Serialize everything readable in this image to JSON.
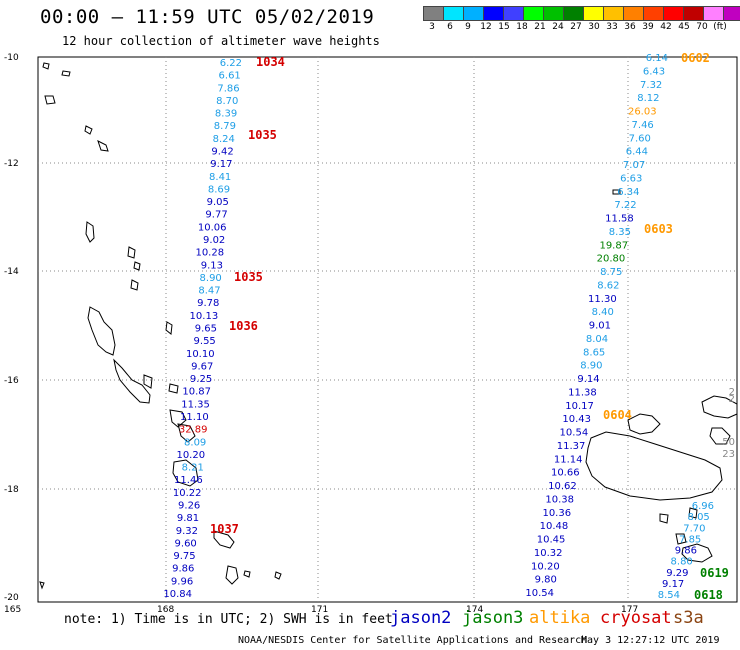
{
  "header": {
    "title": "00:00 – 11:59 UTC 05/02/2019",
    "subtitle": "12 hour collection of altimeter wave heights"
  },
  "colorbar": {
    "colors": [
      "#808080",
      "#00e5ff",
      "#00b0ff",
      "#0000ff",
      "#4040ff",
      "#00ff00",
      "#00c000",
      "#008000",
      "#ffff00",
      "#ffc000",
      "#ff8000",
      "#ff4000",
      "#ff0000",
      "#c00000",
      "#ff80ff",
      "#c000c0",
      "#000000"
    ],
    "labels": [
      "3",
      "6",
      "9",
      "12",
      "15",
      "18",
      "21",
      "24",
      "27",
      "30",
      "33",
      "36",
      "39",
      "42",
      "45",
      "70",
      "(ft)"
    ]
  },
  "map": {
    "x_ticks": [
      "165",
      "168",
      "171",
      "174",
      "177"
    ],
    "y_ticks": [
      "-10",
      "-12",
      "-14",
      "-16",
      "-18",
      "-20"
    ]
  },
  "tracks": {
    "colors": {
      "jason2": "#0000c0",
      "cyan": "#1e9ee6",
      "jason3": "#008000",
      "altika": "#ff9900",
      "cryosat": "#d40000"
    },
    "left": [
      {
        "v": "6.22",
        "c": "cyan"
      },
      {
        "v": "6.61",
        "c": "cyan"
      },
      {
        "v": "7.86",
        "c": "cyan"
      },
      {
        "v": "8.70",
        "c": "cyan"
      },
      {
        "v": "8.39",
        "c": "cyan"
      },
      {
        "v": "8.79",
        "c": "cyan"
      },
      {
        "v": "8.24",
        "c": "cyan"
      },
      {
        "v": "9.42",
        "c": "jason2"
      },
      {
        "v": "9.17",
        "c": "jason2"
      },
      {
        "v": "8.41",
        "c": "cyan"
      },
      {
        "v": "8.69",
        "c": "cyan"
      },
      {
        "v": "9.05",
        "c": "jason2"
      },
      {
        "v": "9.77",
        "c": "jason2"
      },
      {
        "v": "10.06",
        "c": "jason2"
      },
      {
        "v": "9.02",
        "c": "jason2"
      },
      {
        "v": "10.28",
        "c": "jason2"
      },
      {
        "v": "9.13",
        "c": "jason2"
      },
      {
        "v": "8.90",
        "c": "cyan"
      },
      {
        "v": "8.47",
        "c": "cyan"
      },
      {
        "v": "9.78",
        "c": "jason2"
      },
      {
        "v": "10.13",
        "c": "jason2"
      },
      {
        "v": "9.65",
        "c": "jason2"
      },
      {
        "v": "9.55",
        "c": "jason2"
      },
      {
        "v": "10.10",
        "c": "jason2"
      },
      {
        "v": "9.67",
        "c": "jason2"
      },
      {
        "v": "9.25",
        "c": "jason2"
      },
      {
        "v": "10.87",
        "c": "jason2"
      },
      {
        "v": "11.35",
        "c": "jason2"
      },
      {
        "v": "11.10",
        "c": "jason2"
      },
      {
        "v": "32.89",
        "c": "cryosat"
      },
      {
        "v": "8.09",
        "c": "cyan"
      },
      {
        "v": "10.20",
        "c": "jason2"
      },
      {
        "v": "8.21",
        "c": "cyan"
      },
      {
        "v": "11.46",
        "c": "jason2"
      },
      {
        "v": "10.22",
        "c": "jason2"
      },
      {
        "v": "9.26",
        "c": "jason2"
      },
      {
        "v": "9.81",
        "c": "jason2"
      },
      {
        "v": "9.32",
        "c": "jason2"
      },
      {
        "v": "9.60",
        "c": "jason2"
      },
      {
        "v": "9.75",
        "c": "jason2"
      },
      {
        "v": "9.86",
        "c": "jason2"
      },
      {
        "v": "9.96",
        "c": "jason2"
      },
      {
        "v": "10.84",
        "c": "jason2"
      }
    ],
    "right": [
      {
        "v": "6.14",
        "c": "cyan"
      },
      {
        "v": "6.43",
        "c": "cyan"
      },
      {
        "v": "7.32",
        "c": "cyan"
      },
      {
        "v": "8.12",
        "c": "cyan"
      },
      {
        "v": "26.03",
        "c": "altika"
      },
      {
        "v": "7.46",
        "c": "cyan"
      },
      {
        "v": "7.60",
        "c": "cyan"
      },
      {
        "v": "6.44",
        "c": "cyan"
      },
      {
        "v": "7.07",
        "c": "cyan"
      },
      {
        "v": "6.63",
        "c": "cyan"
      },
      {
        "v": "6.34",
        "c": "cyan"
      },
      {
        "v": "7.22",
        "c": "cyan"
      },
      {
        "v": "11.58",
        "c": "jason2"
      },
      {
        "v": "8.35",
        "c": "cyan"
      },
      {
        "v": "19.87",
        "c": "jason3"
      },
      {
        "v": "20.80",
        "c": "jason3"
      },
      {
        "v": "8.75",
        "c": "cyan"
      },
      {
        "v": "8.62",
        "c": "cyan"
      },
      {
        "v": "11.30",
        "c": "jason2"
      },
      {
        "v": "8.40",
        "c": "cyan"
      },
      {
        "v": "9.01",
        "c": "jason2"
      },
      {
        "v": "8.04",
        "c": "cyan"
      },
      {
        "v": "8.65",
        "c": "cyan"
      },
      {
        "v": "8.90",
        "c": "cyan"
      },
      {
        "v": "9.14",
        "c": "jason2"
      },
      {
        "v": "11.38",
        "c": "jason2"
      },
      {
        "v": "10.17",
        "c": "jason2"
      },
      {
        "v": "10.43",
        "c": "jason2"
      },
      {
        "v": "10.54",
        "c": "jason2"
      },
      {
        "v": "11.37",
        "c": "jason2"
      },
      {
        "v": "11.14",
        "c": "jason2"
      },
      {
        "v": "10.66",
        "c": "jason2"
      },
      {
        "v": "10.62",
        "c": "jason2"
      },
      {
        "v": "10.38",
        "c": "jason2"
      },
      {
        "v": "10.36",
        "c": "jason2"
      },
      {
        "v": "10.48",
        "c": "jason2"
      },
      {
        "v": "10.45",
        "c": "jason2"
      },
      {
        "v": "10.32",
        "c": "jason2"
      },
      {
        "v": "10.20",
        "c": "jason2"
      },
      {
        "v": "9.80",
        "c": "jason2"
      },
      {
        "v": "10.54",
        "c": "jason2"
      }
    ],
    "far_right": [
      {
        "v": "6.96",
        "c": "cyan"
      },
      {
        "v": "8.05",
        "c": "cyan"
      },
      {
        "v": "7.70",
        "c": "cyan"
      },
      {
        "v": "7.85",
        "c": "cyan"
      },
      {
        "v": "9.86",
        "c": "jason2"
      },
      {
        "v": "8.80",
        "c": "cyan"
      },
      {
        "v": "9.29",
        "c": "jason2"
      },
      {
        "v": "9.17",
        "c": "jason2"
      },
      {
        "v": "8.54",
        "c": "cyan"
      }
    ],
    "edge": [
      "2",
      "2",
      "50",
      "23"
    ],
    "time_tags": [
      {
        "t": "1034",
        "c": "cryosat"
      },
      {
        "t": "1035",
        "c": "cryosat"
      },
      {
        "t": "1035",
        "c": "cryosat"
      },
      {
        "t": "1036",
        "c": "cryosat"
      },
      {
        "t": "1037",
        "c": "cryosat"
      },
      {
        "t": "0602",
        "c": "altika"
      },
      {
        "t": "0603",
        "c": "altika"
      },
      {
        "t": "0604",
        "c": "altika"
      },
      {
        "t": "0619",
        "c": "jason3"
      },
      {
        "t": "0618",
        "c": "jason3"
      }
    ]
  },
  "footer": {
    "note": "note: 1) Time is in UTC; 2) SWH is in feet",
    "legend": [
      {
        "label": "jason2",
        "color": "#0000c0"
      },
      {
        "label": "jason3",
        "color": "#008000"
      },
      {
        "label": "altika",
        "color": "#ff9900"
      },
      {
        "label": "cryosat",
        "color": "#d40000"
      },
      {
        "label": "s3a",
        "color": "#8b4513"
      }
    ],
    "credit": "NOAA/NESDIS Center for Satellite Applications and Research",
    "timestamp": "May  3 12:27:12 UTC 2019"
  }
}
